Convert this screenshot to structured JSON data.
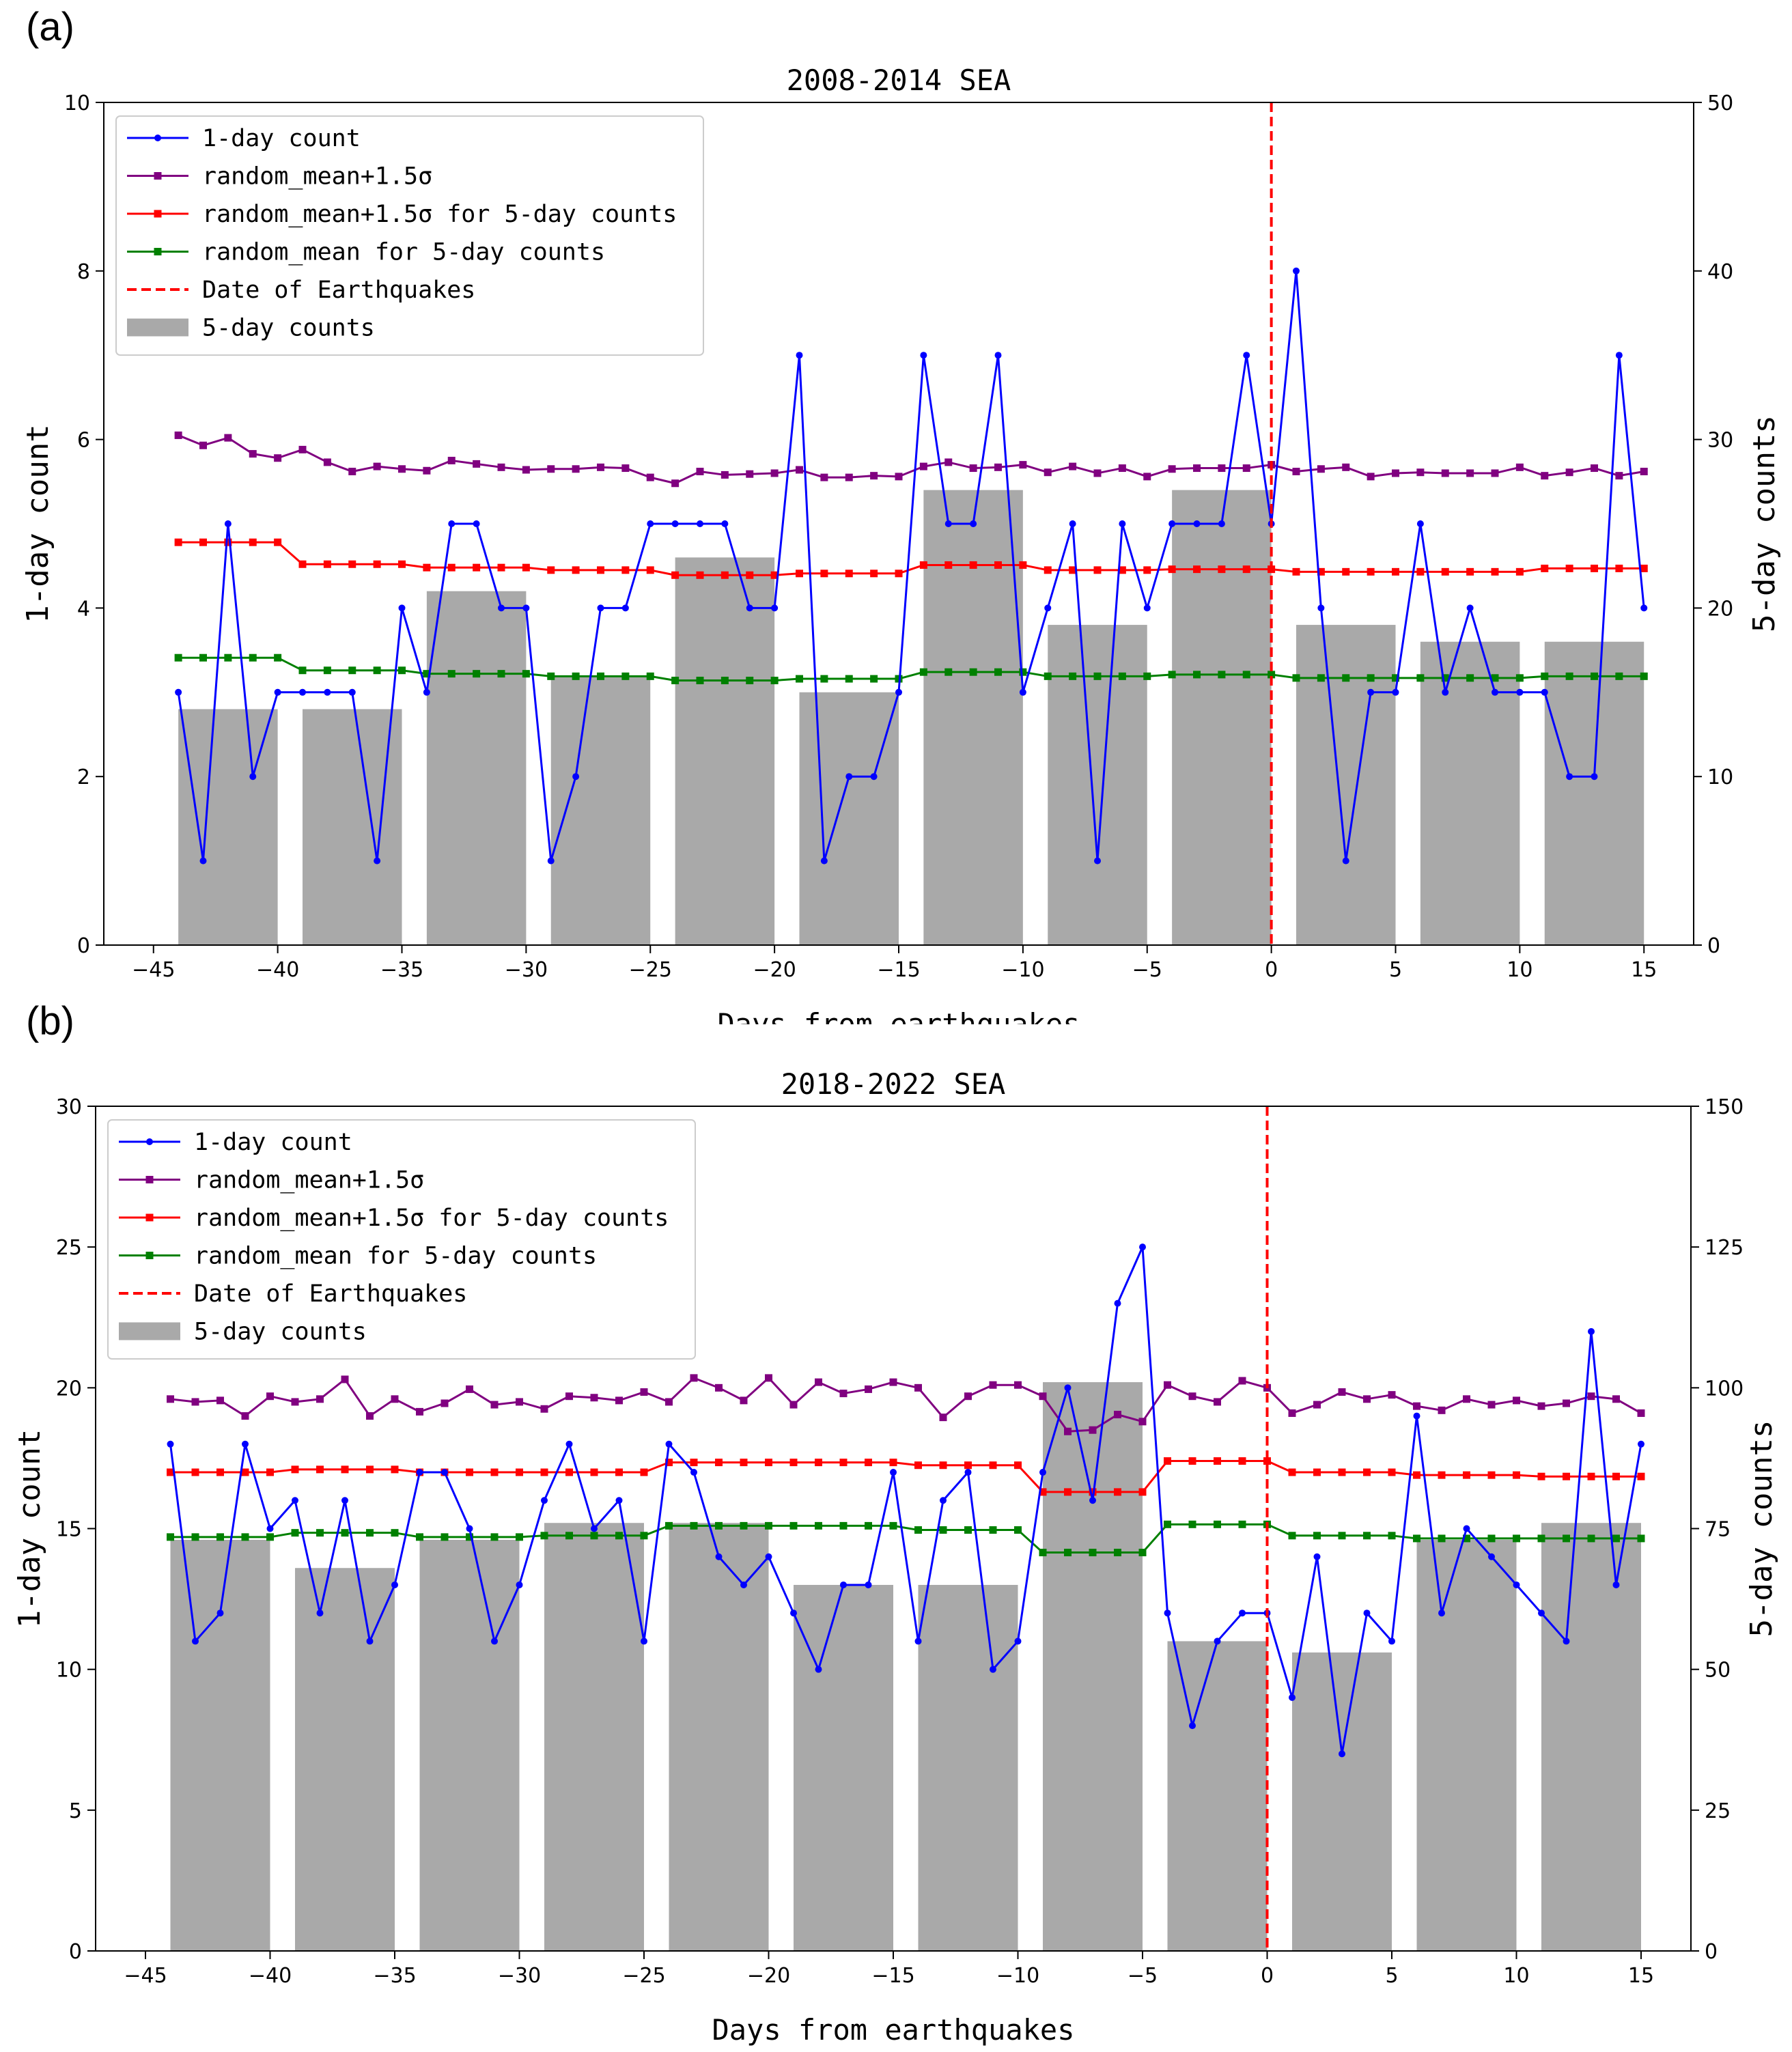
{
  "figure": {
    "panel_labels": [
      "(a)",
      "(b)"
    ]
  },
  "chart_data": [
    {
      "type": "bar+line",
      "title": "2008-2014 SEA",
      "xlabel": "Days from earthquakes",
      "ylabel_left": "1-day count",
      "ylabel_right": "5-day counts",
      "xlim": [
        -47,
        17
      ],
      "ylim_left": [
        0,
        10
      ],
      "ylim_right": [
        0,
        50
      ],
      "xticks": [
        -45,
        -40,
        -35,
        -30,
        -25,
        -20,
        -15,
        -10,
        -5,
        0,
        5,
        10,
        15
      ],
      "yticks_left": [
        0,
        2,
        4,
        6,
        8,
        10
      ],
      "yticks_right": [
        0,
        10,
        20,
        30,
        40,
        50
      ],
      "earthquake_day": 0,
      "x": [
        -44,
        -43,
        -42,
        -41,
        -40,
        -39,
        -38,
        -37,
        -36,
        -35,
        -34,
        -33,
        -32,
        -31,
        -30,
        -29,
        -28,
        -27,
        -26,
        -25,
        -24,
        -23,
        -22,
        -21,
        -20,
        -19,
        -18,
        -17,
        -16,
        -15,
        -14,
        -13,
        -12,
        -11,
        -10,
        -9,
        -8,
        -7,
        -6,
        -5,
        -4,
        -3,
        -2,
        -1,
        0,
        1,
        2,
        3,
        4,
        5,
        6,
        7,
        8,
        9,
        10,
        11,
        12,
        13,
        14,
        15
      ],
      "legend": [
        {
          "key": "daily",
          "label": "1-day count",
          "color": "#0000ff",
          "marker": "circle"
        },
        {
          "key": "rand15",
          "label": "random_mean+1.5σ",
          "color": "#800080",
          "marker": "square"
        },
        {
          "key": "rand5_15",
          "label": "random_mean+1.5σ for 5-day counts",
          "color": "#ff0000",
          "marker": "square"
        },
        {
          "key": "rand5_mean",
          "label": "random_mean for 5-day counts",
          "color": "#008000",
          "marker": "square"
        },
        {
          "key": "eq",
          "label": "Date of Earthquakes",
          "color": "#ff0000",
          "marker": "dashed"
        },
        {
          "key": "bars",
          "label": "5-day counts",
          "color": "#a9a9a9",
          "marker": "bar"
        }
      ],
      "bars": {
        "centers": [
          -42,
          -37,
          -32,
          -27,
          -22,
          -17,
          -12,
          -7,
          -2,
          3,
          8,
          13
        ],
        "values": [
          14,
          14,
          21,
          16,
          23,
          15,
          27,
          19,
          27,
          19,
          18,
          18
        ],
        "width": 4
      },
      "series": {
        "daily": [
          3,
          1,
          5,
          2,
          3,
          3,
          3,
          3,
          1,
          4,
          3,
          5,
          5,
          4,
          4,
          1,
          2,
          4,
          4,
          5,
          5,
          5,
          5,
          4,
          4,
          7,
          1,
          2,
          2,
          3,
          7,
          5,
          5,
          7,
          3,
          4,
          5,
          1,
          5,
          4,
          5,
          5,
          5,
          7,
          5,
          8,
          4,
          1,
          3,
          3,
          5,
          3,
          4,
          3,
          3,
          3,
          2,
          2,
          7,
          4
        ],
        "rand15": [
          6.05,
          5.93,
          6.02,
          5.83,
          5.78,
          5.88,
          5.73,
          5.62,
          5.68,
          5.65,
          5.63,
          5.75,
          5.71,
          5.67,
          5.64,
          5.65,
          5.65,
          5.67,
          5.66,
          5.55,
          5.48,
          5.62,
          5.58,
          5.59,
          5.6,
          5.64,
          5.55,
          5.55,
          5.57,
          5.56,
          5.68,
          5.73,
          5.66,
          5.67,
          5.7,
          5.61,
          5.68,
          5.6,
          5.66,
          5.56,
          5.65,
          5.66,
          5.66,
          5.66,
          5.7,
          5.62,
          5.65,
          5.67,
          5.56,
          5.6,
          5.61,
          5.6,
          5.6,
          5.6,
          5.67,
          5.57,
          5.61,
          5.66,
          5.57,
          5.62
        ],
        "rand5_15": [
          4.78,
          4.78,
          4.78,
          4.78,
          4.78,
          4.52,
          4.52,
          4.52,
          4.52,
          4.52,
          4.48,
          4.48,
          4.48,
          4.48,
          4.48,
          4.45,
          4.45,
          4.45,
          4.45,
          4.45,
          4.39,
          4.39,
          4.39,
          4.39,
          4.39,
          4.41,
          4.41,
          4.41,
          4.41,
          4.41,
          4.51,
          4.51,
          4.51,
          4.51,
          4.51,
          4.45,
          4.45,
          4.45,
          4.45,
          4.45,
          4.46,
          4.46,
          4.46,
          4.46,
          4.46,
          4.43,
          4.43,
          4.43,
          4.43,
          4.43,
          4.43,
          4.43,
          4.43,
          4.43,
          4.43,
          4.47,
          4.47,
          4.47,
          4.47,
          4.47
        ],
        "rand5_mean": [
          3.41,
          3.41,
          3.41,
          3.41,
          3.41,
          3.26,
          3.26,
          3.26,
          3.26,
          3.26,
          3.22,
          3.22,
          3.22,
          3.22,
          3.22,
          3.19,
          3.19,
          3.19,
          3.19,
          3.19,
          3.14,
          3.14,
          3.14,
          3.14,
          3.14,
          3.16,
          3.16,
          3.16,
          3.16,
          3.16,
          3.24,
          3.24,
          3.24,
          3.24,
          3.24,
          3.19,
          3.19,
          3.19,
          3.19,
          3.19,
          3.21,
          3.21,
          3.21,
          3.21,
          3.21,
          3.17,
          3.17,
          3.17,
          3.17,
          3.17,
          3.17,
          3.17,
          3.17,
          3.17,
          3.17,
          3.19,
          3.19,
          3.19,
          3.19,
          3.19
        ]
      }
    },
    {
      "type": "bar+line",
      "title": "2018-2022 SEA",
      "xlabel": "Days from earthquakes",
      "ylabel_left": "1-day count",
      "ylabel_right": "5-day counts",
      "xlim": [
        -47,
        17
      ],
      "ylim_left": [
        0,
        30
      ],
      "ylim_right": [
        0,
        150
      ],
      "xticks": [
        -45,
        -40,
        -35,
        -30,
        -25,
        -20,
        -15,
        -10,
        -5,
        0,
        5,
        10,
        15
      ],
      "yticks_left": [
        0,
        5,
        10,
        15,
        20,
        25,
        30
      ],
      "yticks_right": [
        0,
        25,
        50,
        75,
        100,
        125,
        150
      ],
      "earthquake_day": 0,
      "x": [
        -44,
        -43,
        -42,
        -41,
        -40,
        -39,
        -38,
        -37,
        -36,
        -35,
        -34,
        -33,
        -32,
        -31,
        -30,
        -29,
        -28,
        -27,
        -26,
        -25,
        -24,
        -23,
        -22,
        -21,
        -20,
        -19,
        -18,
        -17,
        -16,
        -15,
        -14,
        -13,
        -12,
        -11,
        -10,
        -9,
        -8,
        -7,
        -6,
        -5,
        -4,
        -3,
        -2,
        -1,
        0,
        1,
        2,
        3,
        4,
        5,
        6,
        7,
        8,
        9,
        10,
        11,
        12,
        13,
        14,
        15
      ],
      "legend": [
        {
          "key": "daily",
          "label": "1-day count",
          "color": "#0000ff",
          "marker": "circle"
        },
        {
          "key": "rand15",
          "label": "random_mean+1.5σ",
          "color": "#800080",
          "marker": "square"
        },
        {
          "key": "rand5_15",
          "label": "random_mean+1.5σ for 5-day counts",
          "color": "#ff0000",
          "marker": "square"
        },
        {
          "key": "rand5_mean",
          "label": "random_mean for 5-day counts",
          "color": "#008000",
          "marker": "square"
        },
        {
          "key": "eq",
          "label": "Date of Earthquakes",
          "color": "#ff0000",
          "marker": "dashed"
        },
        {
          "key": "bars",
          "label": "5-day counts",
          "color": "#a9a9a9",
          "marker": "bar"
        }
      ],
      "bars": {
        "centers": [
          -42,
          -37,
          -32,
          -27,
          -22,
          -17,
          -12,
          -7,
          -2,
          3,
          8,
          13
        ],
        "values": [
          73,
          68,
          73,
          76,
          76,
          65,
          65,
          101,
          55,
          53,
          73,
          76
        ],
        "width": 4
      },
      "series": {
        "daily": [
          18,
          11,
          12,
          18,
          15,
          16,
          12,
          16,
          11,
          13,
          17,
          17,
          15,
          11,
          13,
          16,
          18,
          15,
          16,
          11,
          18,
          17,
          14,
          13,
          14,
          12,
          10,
          13,
          13,
          17,
          11,
          16,
          17,
          10,
          11,
          17,
          20,
          16,
          23,
          25,
          12,
          8,
          11,
          12,
          12,
          9,
          14,
          7,
          12,
          11,
          19,
          12,
          15,
          14,
          13,
          12,
          11,
          22,
          13,
          18
        ],
        "rand15": [
          19.6,
          19.5,
          19.55,
          19.0,
          19.7,
          19.5,
          19.6,
          20.3,
          19.0,
          19.6,
          19.15,
          19.45,
          19.95,
          19.4,
          19.5,
          19.25,
          19.7,
          19.65,
          19.55,
          19.85,
          19.5,
          20.35,
          20.0,
          19.55,
          20.35,
          19.4,
          20.2,
          19.8,
          19.95,
          20.2,
          20.0,
          18.95,
          19.7,
          20.1,
          20.1,
          19.7,
          18.45,
          18.5,
          19.05,
          18.8,
          20.1,
          19.7,
          19.5,
          20.25,
          20.0,
          19.1,
          19.4,
          19.85,
          19.6,
          19.75,
          19.35,
          19.2,
          19.6,
          19.4,
          19.55,
          19.35,
          19.45,
          19.7,
          19.6,
          19.1
        ],
        "rand5_15": [
          17.0,
          17.0,
          17.0,
          17.0,
          17.0,
          17.1,
          17.1,
          17.1,
          17.1,
          17.1,
          17.0,
          17.0,
          17.0,
          17.0,
          17.0,
          17.0,
          17.0,
          17.0,
          17.0,
          17.0,
          17.35,
          17.35,
          17.35,
          17.35,
          17.35,
          17.35,
          17.35,
          17.35,
          17.35,
          17.35,
          17.25,
          17.25,
          17.25,
          17.25,
          17.25,
          16.3,
          16.3,
          16.3,
          16.3,
          16.3,
          17.4,
          17.4,
          17.4,
          17.4,
          17.4,
          17.0,
          17.0,
          17.0,
          17.0,
          17.0,
          16.9,
          16.9,
          16.9,
          16.9,
          16.9,
          16.85,
          16.85,
          16.85,
          16.85,
          16.85
        ],
        "rand5_mean": [
          14.7,
          14.7,
          14.7,
          14.7,
          14.7,
          14.85,
          14.85,
          14.85,
          14.85,
          14.85,
          14.7,
          14.7,
          14.7,
          14.7,
          14.7,
          14.75,
          14.75,
          14.75,
          14.75,
          14.75,
          15.1,
          15.1,
          15.1,
          15.1,
          15.1,
          15.1,
          15.1,
          15.1,
          15.1,
          15.1,
          14.95,
          14.95,
          14.95,
          14.95,
          14.95,
          14.15,
          14.15,
          14.15,
          14.15,
          14.15,
          15.15,
          15.15,
          15.15,
          15.15,
          15.15,
          14.75,
          14.75,
          14.75,
          14.75,
          14.75,
          14.65,
          14.65,
          14.65,
          14.65,
          14.65,
          14.65,
          14.65,
          14.65,
          14.65,
          14.65
        ]
      }
    }
  ]
}
